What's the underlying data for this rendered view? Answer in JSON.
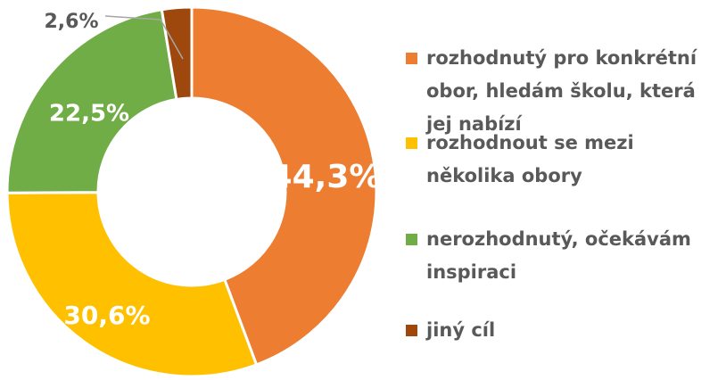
{
  "chart_data": {
    "type": "donut",
    "categories": [
      "rozhodnutý pro konkrétní obor, hledám školu, která jej nabízí",
      "rozhodnout se mezi několika obory",
      "nerozhodnutý, očekávám inspiraci",
      "jiný cíl"
    ],
    "values": [
      44.3,
      30.6,
      22.5,
      2.6
    ],
    "value_labels": [
      "44,3%",
      "30,6%",
      "22,5%",
      "2,6%"
    ],
    "colors": [
      "#ED7D31",
      "#FFC000",
      "#70AD47",
      "#9E480E"
    ],
    "legend": "right"
  }
}
